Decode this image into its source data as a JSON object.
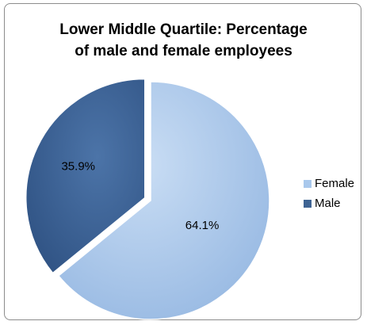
{
  "chart_data": {
    "type": "pie",
    "title_lines": [
      "Lower Middle Quartile: Percentage",
      "of male and female employees"
    ],
    "categories": [
      "Female",
      "Male"
    ],
    "values": [
      64.1,
      35.9
    ],
    "data_labels": [
      "64.1%",
      "35.9%"
    ],
    "colors": [
      "#a9c8ec",
      "#3e6393"
    ],
    "legend_position": "right",
    "exploded_slice": "Male"
  }
}
